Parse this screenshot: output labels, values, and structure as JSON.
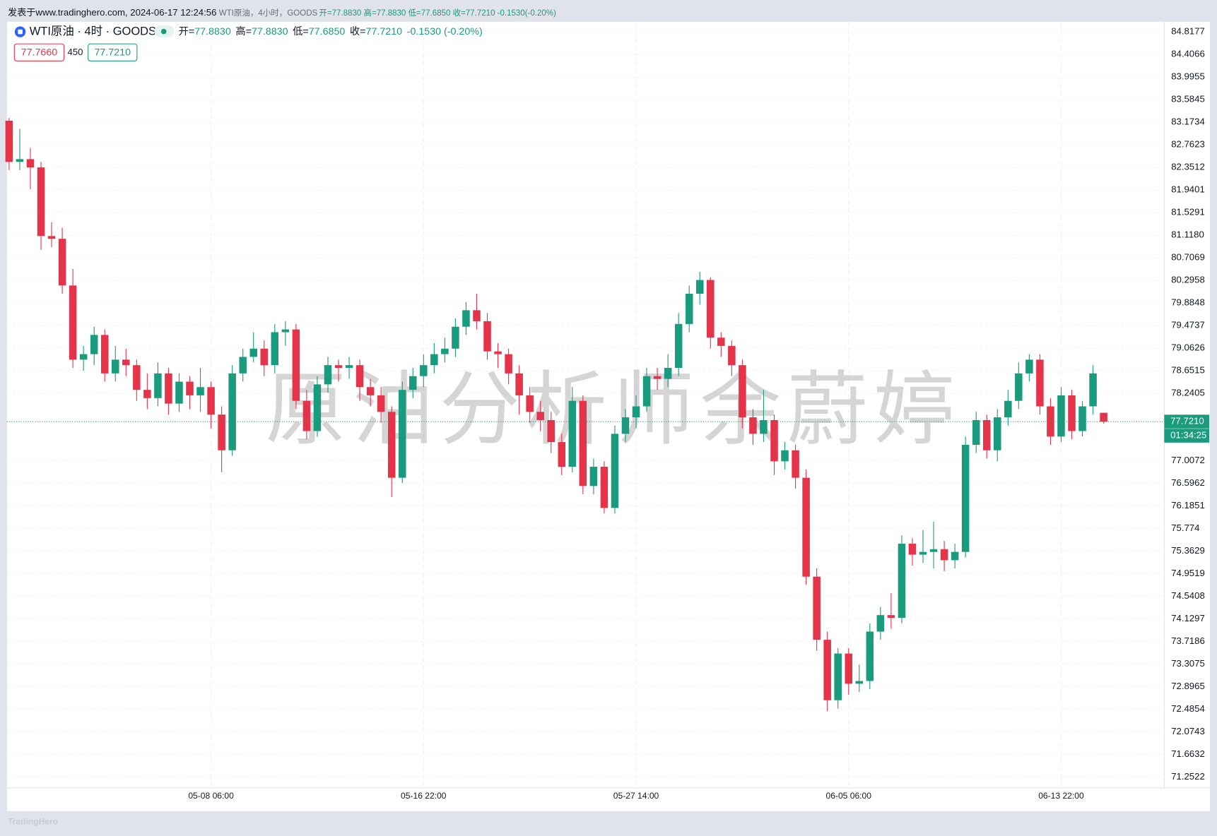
{
  "topbar": {
    "source": "发表于www.tradinghero.com, 2024-06-17 12:24:56",
    "symbol": "WTI原油，4小时，GOODS",
    "ohlc": "开=77.8830 高=77.8830 低=77.6850 收=77.7210 -0.1530(-0.20%)"
  },
  "legend": {
    "title": "WTI原油 · 4时 · GOODS",
    "items": [
      {
        "label": "开=",
        "value": "77.8830"
      },
      {
        "label": "高=",
        "value": "77.8830"
      },
      {
        "label": "低=",
        "value": "77.6850"
      },
      {
        "label": "收=",
        "value": "77.7210"
      }
    ],
    "change": "-0.1530 (-0.20%)",
    "bid": "77.7660",
    "spread": "450",
    "ask": "77.7210"
  },
  "price_tag": {
    "price": "77.7210",
    "countdown": "01:34:25"
  },
  "watermark": "原油分析师余蔚婷",
  "footer": "TradingHero",
  "chart_data": {
    "type": "candlestick",
    "up_color": "#1a9b7d",
    "down_color": "#e5334a",
    "grid": true,
    "xlim": [
      -0.2,
      108.7
    ],
    "xticks": [
      {
        "value": 19,
        "label": "05-08 06:00"
      },
      {
        "value": 39,
        "label": "05-16 22:00"
      },
      {
        "value": 59,
        "label": "05-27 14:00"
      },
      {
        "value": 79,
        "label": "06-05 06:00"
      },
      {
        "value": 99,
        "label": "06-13 22:00"
      }
    ],
    "ylim": [
      71.0546,
      85.0012
    ],
    "yticks": [
      84.8177,
      84.4066,
      83.9955,
      83.5845,
      83.1734,
      82.7623,
      82.3512,
      81.9401,
      81.5291,
      {
        "value": 81.118,
        "label": "81.1180"
      },
      80.7069,
      80.2958,
      79.8848,
      79.4737,
      79.0626,
      78.6515,
      78.2405,
      77.0072,
      76.5962,
      76.1851,
      75.774,
      75.3629,
      74.9519,
      74.5408,
      74.1297,
      73.7186,
      73.3075,
      72.8965,
      72.4854,
      72.0743,
      71.6632,
      71.2522
    ],
    "ohlc": [
      [
        83.2,
        83.25,
        82.3,
        82.45
      ],
      [
        82.45,
        83.05,
        82.3,
        82.5
      ],
      [
        82.5,
        82.7,
        81.95,
        82.35
      ],
      [
        82.35,
        82.45,
        80.85,
        81.1
      ],
      [
        81.1,
        81.35,
        80.9,
        81.05
      ],
      [
        81.05,
        81.25,
        80.05,
        80.2
      ],
      [
        80.2,
        80.5,
        78.7,
        78.85
      ],
      [
        78.85,
        79.1,
        78.65,
        78.95
      ],
      [
        78.95,
        79.45,
        78.75,
        79.3
      ],
      [
        79.3,
        79.4,
        78.45,
        78.6
      ],
      [
        78.6,
        79.1,
        78.45,
        78.85
      ],
      [
        78.85,
        79.05,
        78.55,
        78.75
      ],
      [
        78.75,
        78.85,
        78.1,
        78.3
      ],
      [
        78.3,
        78.6,
        77.95,
        78.15
      ],
      [
        78.15,
        78.8,
        78.0,
        78.6
      ],
      [
        78.6,
        78.7,
        77.85,
        78.05
      ],
      [
        78.05,
        78.6,
        77.9,
        78.45
      ],
      [
        78.45,
        78.55,
        77.95,
        78.2
      ],
      [
        78.2,
        78.7,
        77.9,
        78.35
      ],
      [
        78.35,
        78.45,
        77.6,
        77.85
      ],
      [
        77.85,
        78.0,
        76.8,
        77.2
      ],
      [
        77.2,
        78.75,
        77.1,
        78.6
      ],
      [
        78.6,
        79.05,
        78.45,
        78.9
      ],
      [
        78.9,
        79.35,
        78.8,
        79.05
      ],
      [
        79.05,
        79.2,
        78.55,
        78.75
      ],
      [
        78.75,
        79.5,
        78.6,
        79.35
      ],
      [
        79.35,
        79.55,
        79.1,
        79.4
      ],
      [
        79.4,
        79.5,
        77.95,
        78.1
      ],
      [
        78.1,
        78.3,
        77.4,
        77.55
      ],
      [
        77.55,
        78.55,
        77.45,
        78.4
      ],
      [
        78.4,
        78.9,
        78.25,
        78.75
      ],
      [
        78.75,
        78.85,
        78.45,
        78.7
      ],
      [
        78.7,
        78.9,
        78.5,
        78.75
      ],
      [
        78.75,
        78.85,
        78.1,
        78.35
      ],
      [
        78.35,
        78.5,
        78.0,
        78.2
      ],
      [
        78.2,
        78.35,
        77.7,
        77.9
      ],
      [
        77.9,
        78.0,
        76.35,
        76.7
      ],
      [
        76.7,
        78.45,
        76.6,
        78.3
      ],
      [
        78.3,
        78.7,
        78.15,
        78.55
      ],
      [
        78.55,
        78.95,
        78.35,
        78.75
      ],
      [
        78.75,
        79.15,
        78.6,
        78.95
      ],
      [
        78.95,
        79.25,
        78.8,
        79.05
      ],
      [
        79.05,
        79.6,
        78.9,
        79.45
      ],
      [
        79.45,
        79.9,
        79.3,
        79.75
      ],
      [
        79.75,
        80.05,
        79.4,
        79.55
      ],
      [
        79.55,
        79.7,
        78.85,
        79.0
      ],
      [
        79.0,
        79.15,
        78.7,
        78.95
      ],
      [
        78.95,
        79.05,
        78.4,
        78.6
      ],
      [
        78.6,
        78.75,
        77.85,
        78.2
      ],
      [
        78.2,
        78.35,
        77.7,
        77.9
      ],
      [
        77.9,
        78.1,
        77.55,
        77.75
      ],
      [
        77.75,
        77.9,
        77.15,
        77.35
      ],
      [
        77.35,
        77.5,
        76.75,
        76.9
      ],
      [
        76.9,
        78.35,
        76.8,
        78.1
      ],
      [
        78.1,
        78.2,
        76.4,
        76.55
      ],
      [
        76.55,
        77.05,
        76.4,
        76.9
      ],
      [
        76.9,
        77.0,
        76.05,
        76.15
      ],
      [
        76.15,
        77.65,
        76.05,
        77.5
      ],
      [
        77.5,
        77.95,
        77.35,
        77.8
      ],
      [
        77.8,
        78.2,
        77.6,
        78.0
      ],
      [
        78.0,
        78.7,
        77.9,
        78.55
      ],
      [
        78.55,
        78.7,
        78.3,
        78.5
      ],
      [
        78.5,
        78.95,
        78.35,
        78.7
      ],
      [
        78.7,
        79.7,
        78.55,
        79.5
      ],
      [
        79.5,
        80.2,
        79.35,
        80.05
      ],
      [
        80.05,
        80.45,
        79.85,
        80.3
      ],
      [
        80.3,
        80.35,
        79.05,
        79.25
      ],
      [
        79.25,
        79.35,
        78.9,
        79.1
      ],
      [
        79.1,
        79.2,
        78.55,
        78.75
      ],
      [
        78.75,
        78.85,
        77.6,
        77.8
      ],
      [
        77.8,
        77.95,
        77.3,
        77.5
      ],
      [
        77.5,
        78.3,
        77.35,
        77.75
      ],
      [
        77.75,
        77.85,
        76.75,
        77.0
      ],
      [
        77.0,
        77.35,
        76.85,
        77.2
      ],
      [
        77.2,
        77.3,
        76.5,
        76.7
      ],
      [
        76.7,
        76.85,
        74.75,
        74.9
      ],
      [
        74.9,
        75.05,
        73.55,
        73.75
      ],
      [
        73.75,
        73.9,
        72.45,
        72.65
      ],
      [
        72.65,
        73.6,
        72.5,
        73.5
      ],
      [
        73.5,
        73.6,
        72.75,
        72.95
      ],
      [
        72.95,
        73.3,
        72.8,
        73.0
      ],
      [
        73.0,
        74.05,
        72.85,
        73.9
      ],
      [
        73.9,
        74.35,
        73.75,
        74.2
      ],
      [
        74.2,
        74.6,
        73.95,
        74.15
      ],
      [
        74.15,
        75.65,
        74.05,
        75.5
      ],
      [
        75.5,
        75.6,
        75.1,
        75.3
      ],
      [
        75.3,
        75.75,
        75.15,
        75.35
      ],
      [
        75.35,
        75.9,
        75.05,
        75.4
      ],
      [
        75.4,
        75.55,
        75.0,
        75.2
      ],
      [
        75.2,
        75.5,
        75.05,
        75.35
      ],
      [
        75.35,
        77.45,
        75.25,
        77.3
      ],
      [
        77.3,
        77.9,
        77.15,
        77.75
      ],
      [
        77.75,
        77.85,
        77.05,
        77.2
      ],
      [
        77.2,
        77.95,
        77.0,
        77.8
      ],
      [
        77.8,
        78.3,
        77.65,
        78.1
      ],
      [
        78.1,
        78.8,
        77.95,
        78.6
      ],
      [
        78.6,
        78.95,
        78.45,
        78.85
      ],
      [
        78.85,
        78.95,
        77.85,
        78.0
      ],
      [
        78.0,
        78.15,
        77.3,
        77.45
      ],
      [
        77.45,
        78.35,
        77.35,
        78.2
      ],
      [
        78.2,
        78.3,
        77.4,
        77.55
      ],
      [
        77.55,
        78.1,
        77.45,
        78.0
      ],
      [
        78.0,
        78.75,
        77.85,
        78.6
      ],
      [
        77.883,
        77.883,
        77.685,
        77.721
      ]
    ]
  }
}
